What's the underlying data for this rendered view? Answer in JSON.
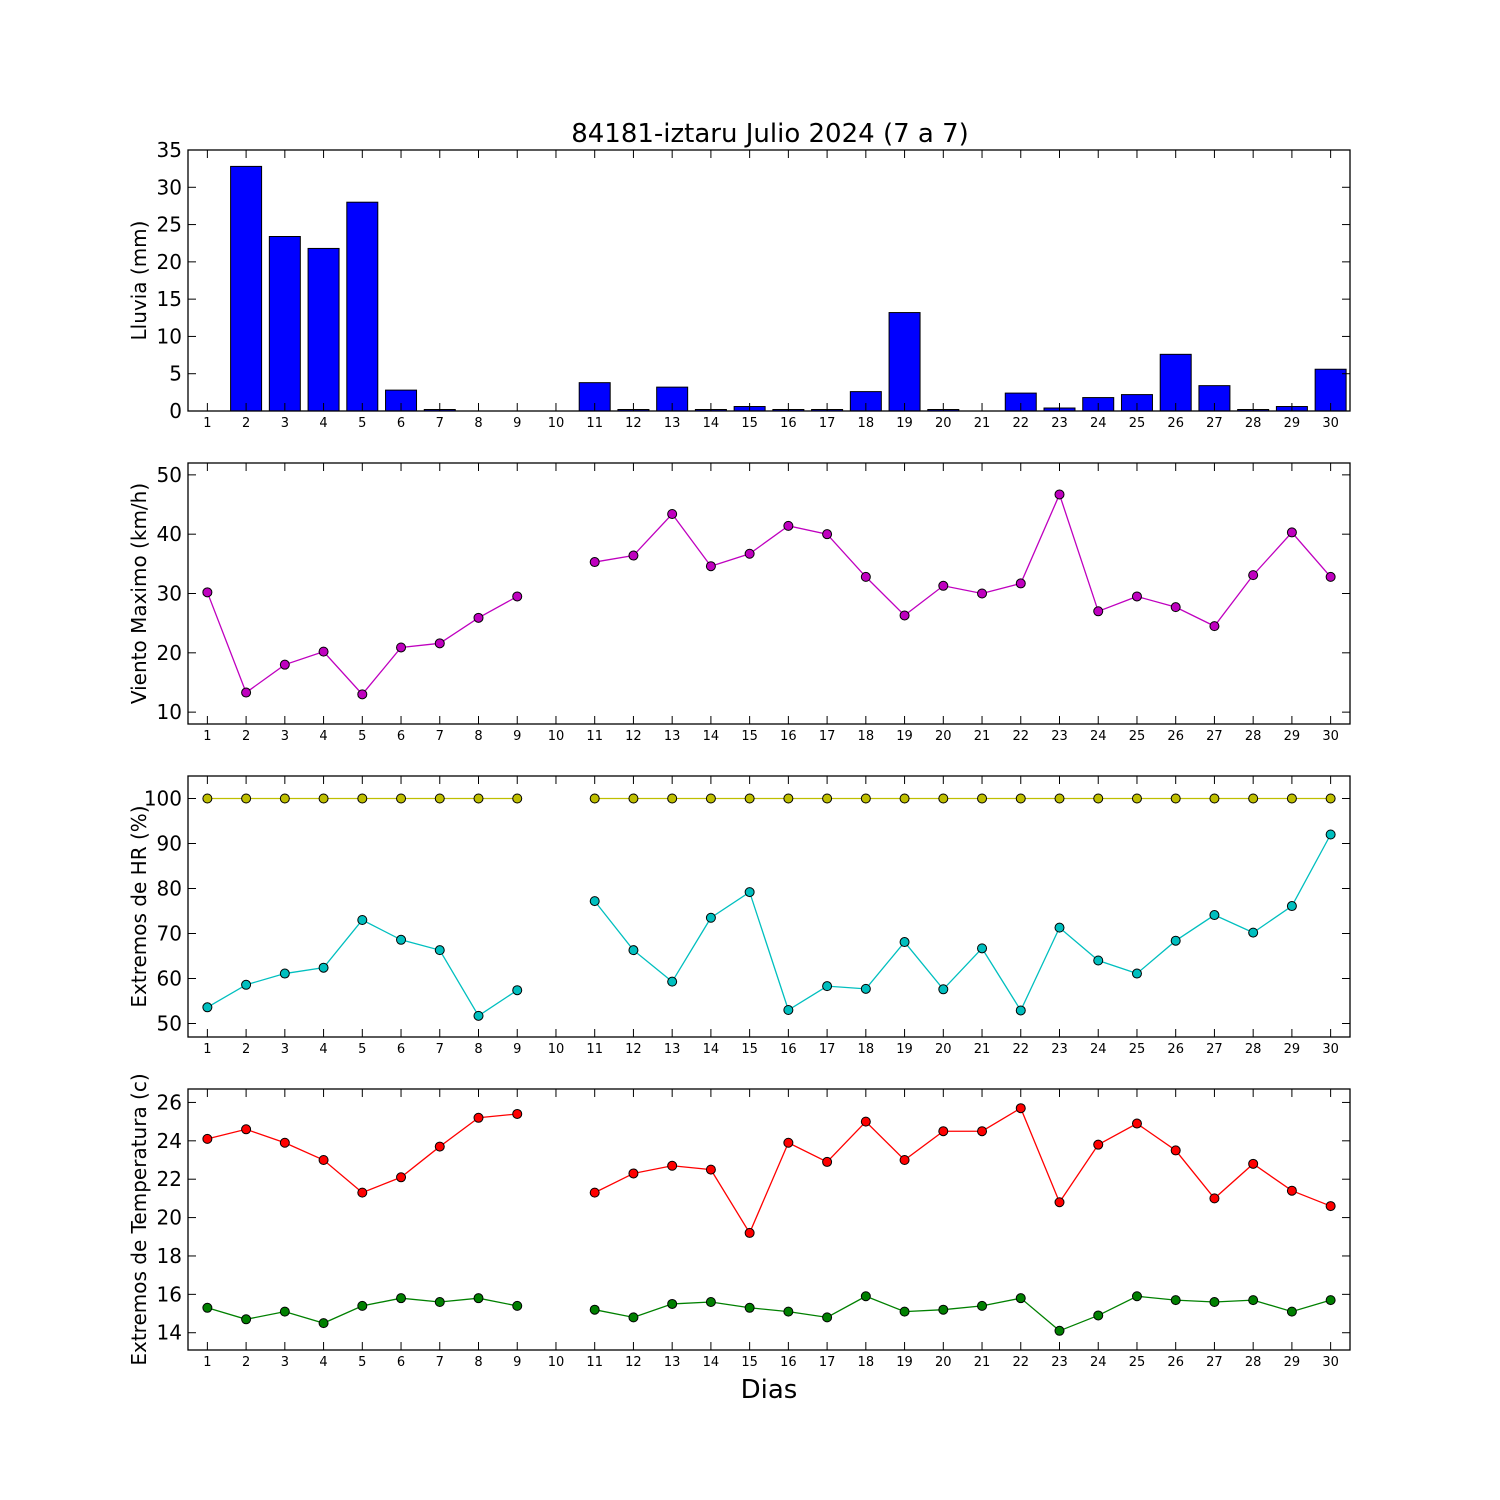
{
  "title": "84181-iztaru Julio 2024  (7 a 7)",
  "xlabel": "Dias",
  "chart_data": [
    {
      "type": "bar",
      "ylabel": "Lluvia (mm)",
      "ylim": [
        0,
        35
      ],
      "yticks": [
        0,
        5,
        10,
        15,
        20,
        25,
        30,
        35
      ],
      "categories": [
        1,
        2,
        3,
        4,
        5,
        6,
        7,
        8,
        9,
        10,
        11,
        12,
        13,
        14,
        15,
        16,
        17,
        18,
        19,
        20,
        21,
        22,
        23,
        24,
        25,
        26,
        27,
        28,
        29,
        30
      ],
      "values": [
        0,
        32.8,
        23.4,
        21.8,
        28.0,
        2.8,
        0.2,
        0,
        0,
        0,
        3.8,
        0.2,
        3.2,
        0.2,
        0.6,
        0.2,
        0.2,
        2.6,
        13.2,
        0.2,
        0,
        2.4,
        0.4,
        1.8,
        2.2,
        7.6,
        3.4,
        0.2,
        0.6,
        5.6
      ],
      "bar_color": "#0000ff"
    },
    {
      "type": "line",
      "ylabel": "Viento Maximo (km/h)",
      "ylim": [
        8,
        52
      ],
      "yticks": [
        10,
        20,
        30,
        40,
        50
      ],
      "x": [
        1,
        2,
        3,
        4,
        5,
        6,
        7,
        8,
        9,
        10,
        11,
        12,
        13,
        14,
        15,
        16,
        17,
        18,
        19,
        20,
        21,
        22,
        23,
        24,
        25,
        26,
        27,
        28,
        29,
        30
      ],
      "series": [
        {
          "values": [
            30.2,
            13.3,
            18.0,
            20.2,
            13.0,
            20.9,
            21.6,
            25.9,
            29.5,
            null,
            35.3,
            36.4,
            43.4,
            34.6,
            36.7,
            41.4,
            40.0,
            32.8,
            26.3,
            31.3,
            30.0,
            31.7,
            46.7,
            27.0,
            29.5,
            27.7,
            24.5,
            33.1,
            40.3,
            32.8
          ],
          "color": "#bf00bf"
        }
      ]
    },
    {
      "type": "line",
      "ylabel": "Extremos de HR (%)",
      "ylim": [
        47,
        105
      ],
      "yticks": [
        50,
        60,
        70,
        80,
        90,
        100
      ],
      "x": [
        1,
        2,
        3,
        4,
        5,
        6,
        7,
        8,
        9,
        10,
        11,
        12,
        13,
        14,
        15,
        16,
        17,
        18,
        19,
        20,
        21,
        22,
        23,
        24,
        25,
        26,
        27,
        28,
        29,
        30
      ],
      "series": [
        {
          "values": [
            100,
            100,
            100,
            100,
            100,
            100,
            100,
            100,
            100,
            null,
            100,
            100,
            100,
            100,
            100,
            100,
            100,
            100,
            100,
            100,
            100,
            100,
            100,
            100,
            100,
            100,
            100,
            100,
            100,
            100
          ],
          "color": "#bfbf00"
        },
        {
          "values": [
            53.6,
            58.6,
            61.1,
            62.4,
            73.0,
            68.6,
            66.3,
            51.7,
            57.4,
            null,
            77.2,
            66.3,
            59.3,
            73.5,
            79.2,
            53.0,
            58.3,
            57.7,
            68.1,
            57.6,
            66.7,
            52.9,
            71.3,
            64.0,
            61.1,
            68.4,
            74.1,
            70.2,
            76.1,
            92.0
          ],
          "color": "#00bfbf"
        }
      ]
    },
    {
      "type": "line",
      "ylabel": "Extremos de Temperatura (c)",
      "ylim": [
        13.1,
        26.7
      ],
      "yticks": [
        14,
        16,
        18,
        20,
        22,
        24,
        26
      ],
      "x": [
        1,
        2,
        3,
        4,
        5,
        6,
        7,
        8,
        9,
        10,
        11,
        12,
        13,
        14,
        15,
        16,
        17,
        18,
        19,
        20,
        21,
        22,
        23,
        24,
        25,
        26,
        27,
        28,
        29,
        30
      ],
      "series": [
        {
          "values": [
            24.1,
            24.6,
            23.9,
            23.0,
            21.3,
            22.1,
            23.7,
            25.2,
            25.4,
            null,
            21.3,
            22.3,
            22.7,
            22.5,
            19.2,
            23.9,
            22.9,
            25.0,
            23.0,
            24.5,
            24.5,
            25.7,
            20.8,
            23.8,
            24.9,
            23.5,
            21.0,
            22.8,
            21.4,
            20.6
          ],
          "color": "#ff0000"
        },
        {
          "values": [
            15.3,
            14.7,
            15.1,
            14.5,
            15.4,
            15.8,
            15.6,
            15.8,
            15.4,
            null,
            15.2,
            14.8,
            15.5,
            15.6,
            15.3,
            15.1,
            14.8,
            15.9,
            15.1,
            15.2,
            15.4,
            15.8,
            14.1,
            14.9,
            15.9,
            15.7,
            15.6,
            15.7,
            15.1,
            15.7
          ],
          "color": "#008000"
        }
      ]
    }
  ]
}
